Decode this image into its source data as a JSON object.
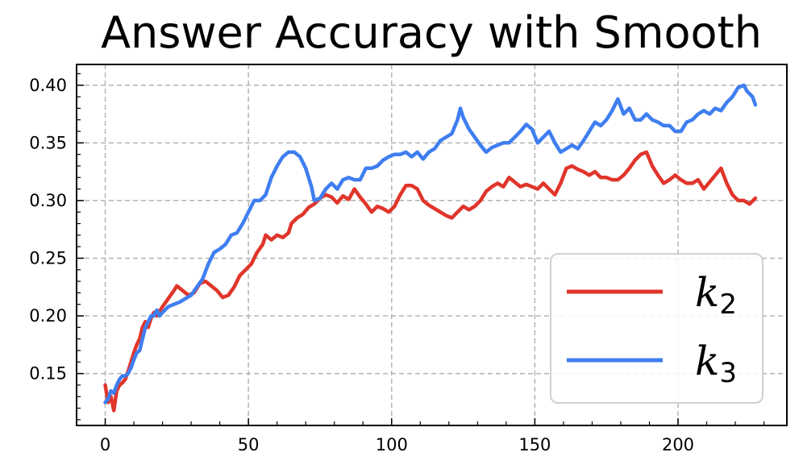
{
  "chart_data": {
    "type": "line",
    "title": "Answer Accuracy with Smooth",
    "xlabel": "",
    "ylabel": "",
    "xlim": [
      -10,
      238
    ],
    "ylim": [
      0.105,
      0.418
    ],
    "xticks": [
      0,
      50,
      100,
      150,
      200
    ],
    "yticks": [
      0.15,
      0.2,
      0.25,
      0.3,
      0.35,
      0.4
    ],
    "xtick_labels": [
      "0",
      "50",
      "100",
      "150",
      "200"
    ],
    "ytick_labels": [
      "0.15",
      "0.20",
      "0.25",
      "0.30",
      "0.35",
      "0.40"
    ],
    "grid": true,
    "legend_position": "lower-right",
    "series": [
      {
        "name": "k2",
        "name_base": "k",
        "name_sub": "2",
        "color": "#E0352B",
        "points": [
          [
            0,
            0.14
          ],
          [
            1,
            0.125
          ],
          [
            2,
            0.13
          ],
          [
            3,
            0.118
          ],
          [
            4,
            0.135
          ],
          [
            5,
            0.14
          ],
          [
            6,
            0.142
          ],
          [
            7,
            0.145
          ],
          [
            8,
            0.152
          ],
          [
            9,
            0.16
          ],
          [
            10,
            0.168
          ],
          [
            11,
            0.175
          ],
          [
            12,
            0.18
          ],
          [
            13,
            0.19
          ],
          [
            14,
            0.195
          ],
          [
            15,
            0.19
          ],
          [
            16,
            0.198
          ],
          [
            17,
            0.203
          ],
          [
            18,
            0.2
          ],
          [
            19,
            0.204
          ],
          [
            20,
            0.208
          ],
          [
            22,
            0.215
          ],
          [
            24,
            0.222
          ],
          [
            25,
            0.226
          ],
          [
            27,
            0.222
          ],
          [
            29,
            0.218
          ],
          [
            31,
            0.22
          ],
          [
            33,
            0.228
          ],
          [
            35,
            0.23
          ],
          [
            37,
            0.226
          ],
          [
            39,
            0.222
          ],
          [
            41,
            0.216
          ],
          [
            43,
            0.218
          ],
          [
            45,
            0.225
          ],
          [
            47,
            0.235
          ],
          [
            49,
            0.24
          ],
          [
            51,
            0.245
          ],
          [
            53,
            0.255
          ],
          [
            55,
            0.262
          ],
          [
            56,
            0.27
          ],
          [
            58,
            0.266
          ],
          [
            60,
            0.27
          ],
          [
            62,
            0.268
          ],
          [
            64,
            0.272
          ],
          [
            65,
            0.28
          ],
          [
            67,
            0.285
          ],
          [
            69,
            0.288
          ],
          [
            71,
            0.294
          ],
          [
            73,
            0.297
          ],
          [
            75,
            0.302
          ],
          [
            77,
            0.305
          ],
          [
            79,
            0.303
          ],
          [
            81,
            0.298
          ],
          [
            83,
            0.304
          ],
          [
            85,
            0.301
          ],
          [
            87,
            0.31
          ],
          [
            89,
            0.303
          ],
          [
            91,
            0.297
          ],
          [
            93,
            0.29
          ],
          [
            95,
            0.295
          ],
          [
            97,
            0.293
          ],
          [
            99,
            0.29
          ],
          [
            101,
            0.295
          ],
          [
            103,
            0.305
          ],
          [
            105,
            0.313
          ],
          [
            107,
            0.313
          ],
          [
            109,
            0.31
          ],
          [
            111,
            0.3
          ],
          [
            113,
            0.296
          ],
          [
            115,
            0.293
          ],
          [
            117,
            0.29
          ],
          [
            119,
            0.287
          ],
          [
            121,
            0.285
          ],
          [
            123,
            0.29
          ],
          [
            125,
            0.295
          ],
          [
            127,
            0.292
          ],
          [
            129,
            0.295
          ],
          [
            131,
            0.3
          ],
          [
            133,
            0.308
          ],
          [
            135,
            0.312
          ],
          [
            137,
            0.315
          ],
          [
            139,
            0.312
          ],
          [
            141,
            0.32
          ],
          [
            143,
            0.316
          ],
          [
            145,
            0.312
          ],
          [
            147,
            0.314
          ],
          [
            149,
            0.312
          ],
          [
            151,
            0.31
          ],
          [
            153,
            0.315
          ],
          [
            155,
            0.31
          ],
          [
            157,
            0.305
          ],
          [
            159,
            0.315
          ],
          [
            161,
            0.328
          ],
          [
            163,
            0.33
          ],
          [
            165,
            0.327
          ],
          [
            167,
            0.325
          ],
          [
            169,
            0.322
          ],
          [
            171,
            0.325
          ],
          [
            173,
            0.32
          ],
          [
            175,
            0.32
          ],
          [
            177,
            0.318
          ],
          [
            179,
            0.318
          ],
          [
            181,
            0.322
          ],
          [
            183,
            0.328
          ],
          [
            185,
            0.335
          ],
          [
            187,
            0.34
          ],
          [
            189,
            0.342
          ],
          [
            191,
            0.33
          ],
          [
            193,
            0.322
          ],
          [
            195,
            0.315
          ],
          [
            197,
            0.318
          ],
          [
            199,
            0.322
          ],
          [
            201,
            0.318
          ],
          [
            203,
            0.315
          ],
          [
            205,
            0.315
          ],
          [
            207,
            0.318
          ],
          [
            209,
            0.31
          ],
          [
            211,
            0.316
          ],
          [
            213,
            0.322
          ],
          [
            215,
            0.328
          ],
          [
            217,
            0.315
          ],
          [
            219,
            0.305
          ],
          [
            221,
            0.3
          ],
          [
            223,
            0.3
          ],
          [
            225,
            0.297
          ],
          [
            227,
            0.302
          ]
        ]
      },
      {
        "name": "k3",
        "name_base": "k",
        "name_sub": "3",
        "color": "#3F7EF0",
        "points": [
          [
            0,
            0.125
          ],
          [
            1,
            0.128
          ],
          [
            2,
            0.135
          ],
          [
            3,
            0.133
          ],
          [
            4,
            0.14
          ],
          [
            5,
            0.145
          ],
          [
            6,
            0.148
          ],
          [
            7,
            0.148
          ],
          [
            8,
            0.15
          ],
          [
            9,
            0.155
          ],
          [
            10,
            0.162
          ],
          [
            11,
            0.168
          ],
          [
            12,
            0.17
          ],
          [
            13,
            0.18
          ],
          [
            14,
            0.19
          ],
          [
            15,
            0.195
          ],
          [
            16,
            0.2
          ],
          [
            17,
            0.2
          ],
          [
            18,
            0.205
          ],
          [
            19,
            0.2
          ],
          [
            20,
            0.203
          ],
          [
            22,
            0.208
          ],
          [
            24,
            0.21
          ],
          [
            26,
            0.212
          ],
          [
            28,
            0.215
          ],
          [
            30,
            0.218
          ],
          [
            32,
            0.225
          ],
          [
            34,
            0.232
          ],
          [
            36,
            0.245
          ],
          [
            38,
            0.255
          ],
          [
            40,
            0.258
          ],
          [
            42,
            0.262
          ],
          [
            44,
            0.27
          ],
          [
            46,
            0.272
          ],
          [
            48,
            0.28
          ],
          [
            50,
            0.29
          ],
          [
            52,
            0.3
          ],
          [
            54,
            0.3
          ],
          [
            56,
            0.305
          ],
          [
            58,
            0.32
          ],
          [
            60,
            0.33
          ],
          [
            62,
            0.338
          ],
          [
            64,
            0.342
          ],
          [
            66,
            0.342
          ],
          [
            68,
            0.338
          ],
          [
            70,
            0.328
          ],
          [
            72,
            0.312
          ],
          [
            73,
            0.3
          ],
          [
            75,
            0.302
          ],
          [
            77,
            0.31
          ],
          [
            79,
            0.315
          ],
          [
            81,
            0.31
          ],
          [
            83,
            0.318
          ],
          [
            85,
            0.32
          ],
          [
            87,
            0.318
          ],
          [
            89,
            0.318
          ],
          [
            91,
            0.328
          ],
          [
            93,
            0.328
          ],
          [
            95,
            0.33
          ],
          [
            97,
            0.335
          ],
          [
            99,
            0.338
          ],
          [
            101,
            0.34
          ],
          [
            103,
            0.34
          ],
          [
            105,
            0.342
          ],
          [
            107,
            0.338
          ],
          [
            109,
            0.342
          ],
          [
            111,
            0.336
          ],
          [
            113,
            0.342
          ],
          [
            115,
            0.345
          ],
          [
            117,
            0.352
          ],
          [
            119,
            0.355
          ],
          [
            121,
            0.358
          ],
          [
            123,
            0.37
          ],
          [
            124,
            0.38
          ],
          [
            125,
            0.372
          ],
          [
            127,
            0.362
          ],
          [
            129,
            0.355
          ],
          [
            131,
            0.348
          ],
          [
            133,
            0.342
          ],
          [
            135,
            0.346
          ],
          [
            137,
            0.348
          ],
          [
            139,
            0.35
          ],
          [
            141,
            0.35
          ],
          [
            143,
            0.355
          ],
          [
            145,
            0.36
          ],
          [
            147,
            0.366
          ],
          [
            149,
            0.362
          ],
          [
            151,
            0.35
          ],
          [
            153,
            0.355
          ],
          [
            155,
            0.36
          ],
          [
            157,
            0.35
          ],
          [
            159,
            0.342
          ],
          [
            161,
            0.345
          ],
          [
            163,
            0.348
          ],
          [
            165,
            0.345
          ],
          [
            167,
            0.352
          ],
          [
            169,
            0.36
          ],
          [
            171,
            0.368
          ],
          [
            173,
            0.365
          ],
          [
            175,
            0.37
          ],
          [
            177,
            0.378
          ],
          [
            179,
            0.388
          ],
          [
            181,
            0.375
          ],
          [
            183,
            0.38
          ],
          [
            185,
            0.37
          ],
          [
            187,
            0.37
          ],
          [
            189,
            0.375
          ],
          [
            191,
            0.37
          ],
          [
            193,
            0.368
          ],
          [
            195,
            0.365
          ],
          [
            197,
            0.365
          ],
          [
            199,
            0.36
          ],
          [
            201,
            0.36
          ],
          [
            203,
            0.368
          ],
          [
            205,
            0.37
          ],
          [
            207,
            0.375
          ],
          [
            209,
            0.378
          ],
          [
            211,
            0.375
          ],
          [
            213,
            0.38
          ],
          [
            215,
            0.378
          ],
          [
            217,
            0.385
          ],
          [
            219,
            0.39
          ],
          [
            221,
            0.398
          ],
          [
            223,
            0.4
          ],
          [
            224,
            0.395
          ],
          [
            226,
            0.39
          ],
          [
            227,
            0.383
          ]
        ]
      }
    ]
  }
}
